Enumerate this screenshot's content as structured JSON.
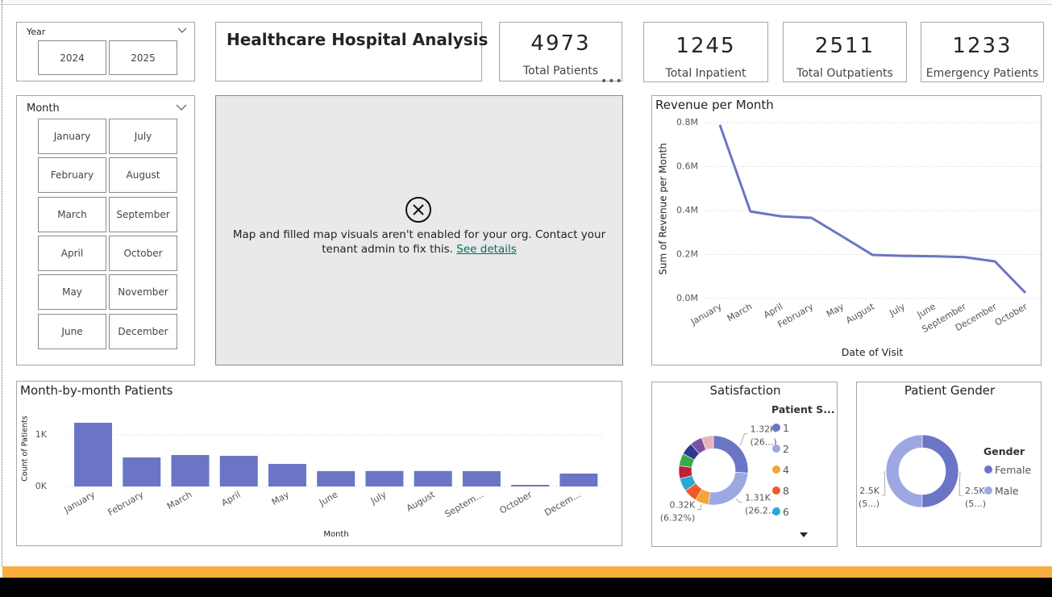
{
  "title": "Healthcare Hospital Analysis",
  "year_slicer": {
    "label": "Year",
    "options": [
      "2024",
      "2025"
    ]
  },
  "month_slicer": {
    "label": "Month",
    "options": [
      "January",
      "July",
      "February",
      "August",
      "March",
      "September",
      "April",
      "October",
      "May",
      "November",
      "June",
      "December"
    ]
  },
  "kpis": [
    {
      "value": 4973,
      "label": "Total Patients"
    },
    {
      "value": 1245,
      "label": "Total Inpatient"
    },
    {
      "value": 2511,
      "label": "Total Outpatients"
    },
    {
      "value": 1233,
      "label": "Emergency Patients"
    }
  ],
  "map_error": {
    "message": "Map and filled map visuals aren't enabled for your org. Contact your tenant admin to fix this.",
    "link": "See details"
  },
  "chart_data": [
    {
      "type": "line",
      "title": "Revenue per Month",
      "x_label": "Date of Visit",
      "y_label": "Sum of Revenue per Month",
      "categories": [
        "January",
        "March",
        "April",
        "February",
        "May",
        "August",
        "July",
        "June",
        "September",
        "December",
        "October"
      ],
      "values": [
        790000,
        396000,
        374000,
        367000,
        283000,
        198000,
        194000,
        192000,
        188000,
        169000,
        26000
      ],
      "color": "#6b75c5",
      "ylim": [
        0,
        850000
      ],
      "yticks": [
        {
          "value": 0,
          "label": "0.0M"
        },
        {
          "value": 200000,
          "label": "0.2M"
        },
        {
          "value": 400000,
          "label": "0.4M"
        },
        {
          "value": 600000,
          "label": "0.6M"
        },
        {
          "value": 800000,
          "label": "0.8M"
        }
      ],
      "grid": true
    },
    {
      "type": "bar",
      "title": "Month-by-month Patients",
      "x_label": "Month",
      "y_label": "Count of Patients",
      "categories": [
        "January",
        "February",
        "March",
        "April",
        "May",
        "June",
        "July",
        "August",
        "Septem...",
        "October",
        "Decem..."
      ],
      "values": [
        1234,
        562,
        609,
        594,
        437,
        297,
        300,
        300,
        297,
        31,
        250
      ],
      "color": "#6b75c5",
      "ylim": [
        0,
        1300
      ],
      "yticks": [
        {
          "value": 0,
          "label": "0K"
        },
        {
          "value": 1000,
          "label": "1K"
        }
      ],
      "grid": true
    },
    {
      "type": "donut",
      "title": "Satisfaction",
      "legend_title": "Patient S...",
      "categories": [
        "1",
        "2",
        "4",
        "8",
        "6",
        null,
        null,
        null,
        null,
        null
      ],
      "values": [
        1320,
        1310,
        320,
        315,
        310,
        300,
        295,
        290,
        285,
        280
      ],
      "value_labels": [
        [
          "1.32K",
          "(26...)"
        ],
        [
          "1.31K",
          "(26.2...)"
        ],
        [
          "0.32K",
          "(6.32%)"
        ],
        null,
        null,
        null,
        null,
        null,
        null,
        null
      ],
      "colors": [
        "#6b75c5",
        "#9da8e3",
        "#f5a33a",
        "#f05a24",
        "#26a9d9",
        "#c0203a",
        "#3ba94a",
        "#2a3b8f",
        "#7b4fa0",
        "#e8b4bc"
      ]
    },
    {
      "type": "donut",
      "title": "Patient Gender",
      "legend_title": "Gender",
      "categories": [
        "Female",
        "Male"
      ],
      "values": [
        2490,
        2483
      ],
      "value_labels": [
        [
          "2.5K",
          "(5...)"
        ],
        [
          "2.5K",
          "(5...)"
        ]
      ],
      "colors": [
        "#6b75c5",
        "#9da8e3"
      ]
    }
  ]
}
